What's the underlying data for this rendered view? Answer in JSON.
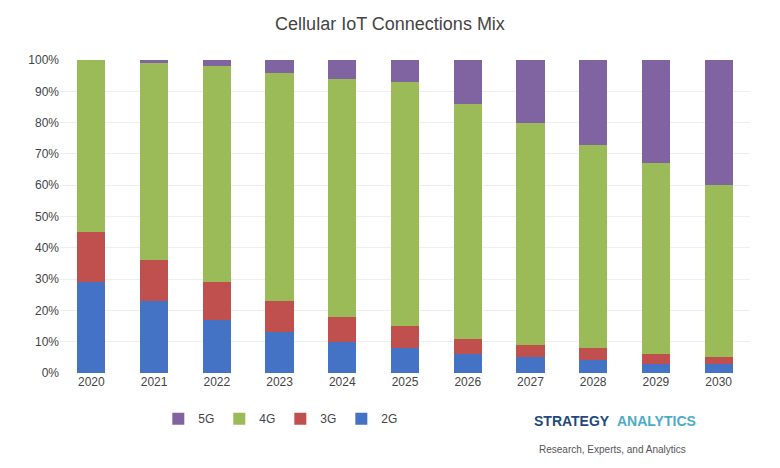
{
  "chart_data": {
    "type": "bar",
    "stacked": true,
    "title": "Cellular IoT Connections Mix",
    "categories": [
      "2020",
      "2021",
      "2022",
      "2023",
      "2024",
      "2025",
      "2026",
      "2027",
      "2028",
      "2029",
      "2030"
    ],
    "series": [
      {
        "name": "2G",
        "color": "#4472C4",
        "values": [
          29,
          23,
          17,
          13,
          10,
          8,
          6,
          5,
          4,
          3,
          3
        ]
      },
      {
        "name": "3G",
        "color": "#C0504D",
        "values": [
          16,
          13,
          12,
          10,
          8,
          7,
          5,
          4,
          4,
          3,
          2
        ]
      },
      {
        "name": "4G",
        "color": "#9BBB59",
        "values": [
          55,
          63,
          69,
          73,
          76,
          78,
          75,
          71,
          65,
          61,
          55
        ]
      },
      {
        "name": "5G",
        "color": "#8064A2",
        "values": [
          0,
          1,
          2,
          4,
          6,
          7,
          14,
          20,
          27,
          33,
          40
        ]
      }
    ],
    "ylim": [
      0,
      100
    ],
    "yticks": [
      {
        "value": 0,
        "label": "0%"
      },
      {
        "value": 10,
        "label": "10%"
      },
      {
        "value": 20,
        "label": "20%"
      },
      {
        "value": 30,
        "label": "30%"
      },
      {
        "value": 40,
        "label": "40%"
      },
      {
        "value": 50,
        "label": "50%"
      },
      {
        "value": 60,
        "label": "60%"
      },
      {
        "value": 70,
        "label": "70%"
      },
      {
        "value": 80,
        "label": "80%"
      },
      {
        "value": 90,
        "label": "90%"
      },
      {
        "value": 100,
        "label": "100%"
      }
    ],
    "grid": true,
    "legend": "bottom",
    "annotations": [
      {
        "text": "STRATEGY",
        "color": "#1F497D"
      },
      {
        "text": "ANALYTICS",
        "color": "#4BACC6"
      },
      {
        "text": "Research, Experts, and Analytics",
        "color": "#555555"
      }
    ]
  }
}
